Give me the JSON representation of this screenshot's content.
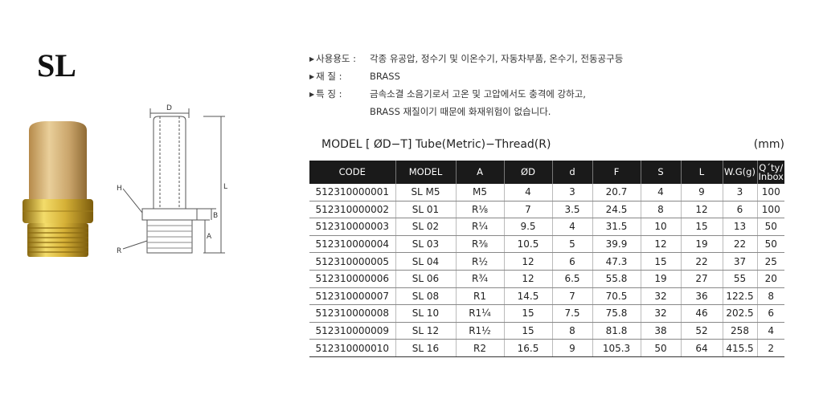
{
  "model": "SL",
  "specs": {
    "usage_key": "사용용도 :",
    "usage_value": "각종 유공압, 정수기 및 이온수기, 자동차부품, 온수기, 전동공구등",
    "material_key": "재     질 :",
    "material_value": "BRASS",
    "feature_key": "특     징 :",
    "feature_value_1": "금속소결 소음기로서 고온 및 고압에서도 충격에 강하고,",
    "feature_value_2": "BRASS 재질이기 때문에 화재위험이 없습니다."
  },
  "drawing_labels": {
    "d": "D",
    "h": "H",
    "r": "R",
    "l": "L",
    "b": "B",
    "a": "A"
  },
  "table": {
    "caption": "MODEL [ ØD−T] Tube(Metric)−Thread(R)",
    "unit": "(mm)",
    "headers": [
      "CODE",
      "MODEL",
      "A",
      "ØD",
      "d",
      "F",
      "S",
      "L",
      "W.G(g)"
    ],
    "qty_header_1": "Q´ty/",
    "qty_header_2": "Inbox",
    "rows": [
      [
        "512310000001",
        "SL M5",
        "M5",
        "4",
        "3",
        "20.7",
        "4",
        "9",
        "3",
        "100"
      ],
      [
        "512310000002",
        "SL 01",
        "R⅛",
        "7",
        "3.5",
        "24.5",
        "8",
        "12",
        "6",
        "100"
      ],
      [
        "512310000003",
        "SL 02",
        "R¼",
        "9.5",
        "4",
        "31.5",
        "10",
        "15",
        "13",
        "50"
      ],
      [
        "512310000004",
        "SL 03",
        "R⅜",
        "10.5",
        "5",
        "39.9",
        "12",
        "19",
        "22",
        "50"
      ],
      [
        "512310000005",
        "SL 04",
        "R½",
        "12",
        "6",
        "47.3",
        "15",
        "22",
        "37",
        "25"
      ],
      [
        "512310000006",
        "SL 06",
        "R¾",
        "12",
        "6.5",
        "55.8",
        "19",
        "27",
        "55",
        "20"
      ],
      [
        "512310000007",
        "SL 08",
        "R1",
        "14.5",
        "7",
        "70.5",
        "32",
        "36",
        "122.5",
        "8"
      ],
      [
        "512310000008",
        "SL 10",
        "R1¼",
        "15",
        "7.5",
        "75.8",
        "32",
        "46",
        "202.5",
        "6"
      ],
      [
        "512310000009",
        "SL 12",
        "R1½",
        "15",
        "8",
        "81.8",
        "38",
        "52",
        "258",
        "4"
      ],
      [
        "512310000010",
        "SL 16",
        "R2",
        "16.5",
        "9",
        "105.3",
        "50",
        "64",
        "415.5",
        "2"
      ]
    ]
  }
}
